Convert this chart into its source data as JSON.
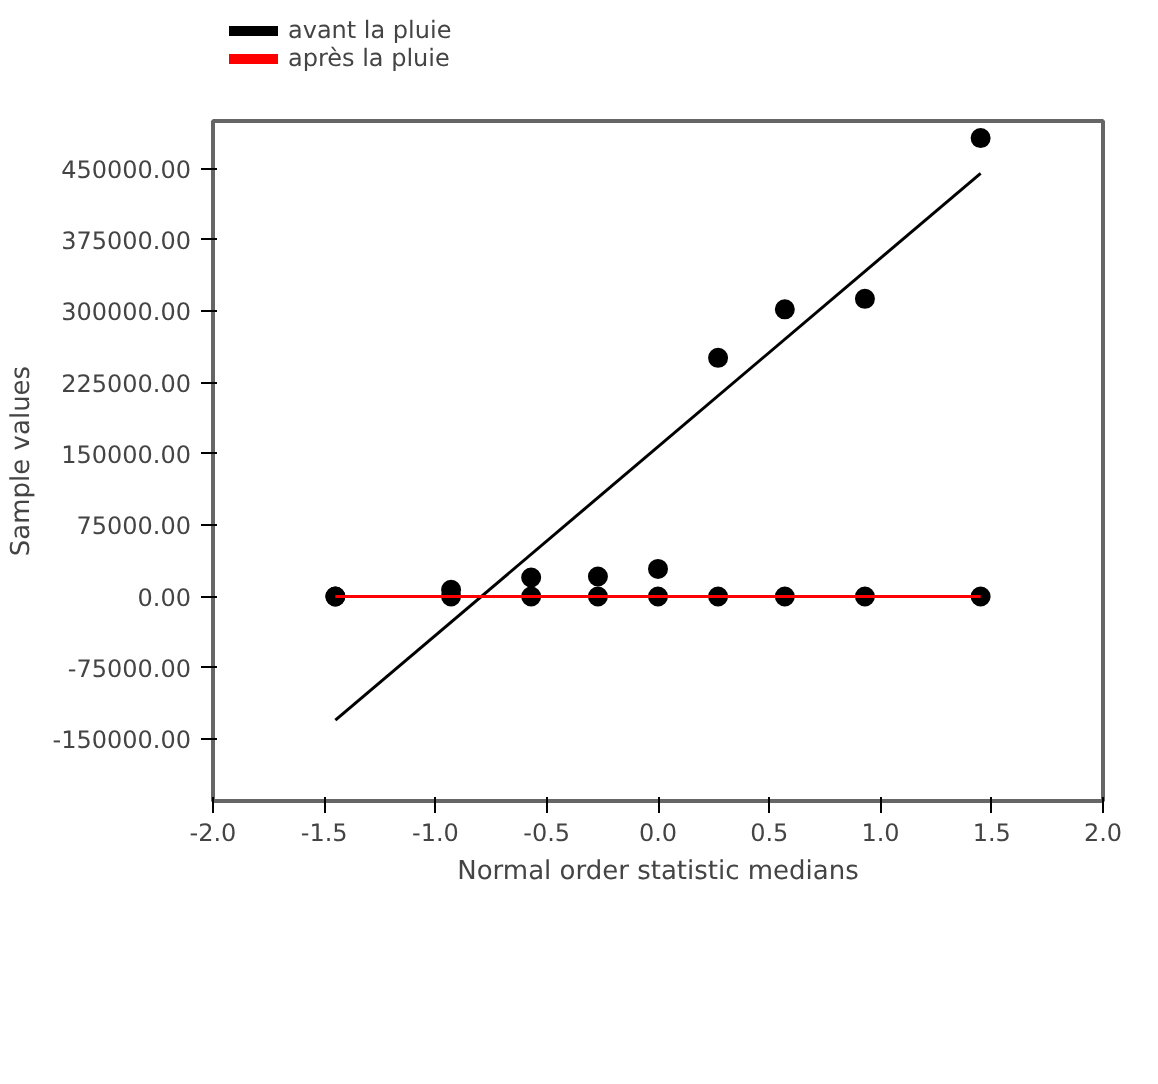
{
  "chart_data": {
    "type": "scatter",
    "xlabel": "Normal order statistic medians",
    "ylabel": "Sample values",
    "xlim": [
      -2.0,
      2.0
    ],
    "ylim": [
      -215000,
      500000
    ],
    "xticks": [
      {
        "value": -2.0,
        "label": "-2.0"
      },
      {
        "value": -1.5,
        "label": "-1.5"
      },
      {
        "value": -1.0,
        "label": "-1.0"
      },
      {
        "value": -0.5,
        "label": "-0.5"
      },
      {
        "value": 0.0,
        "label": "0.0"
      },
      {
        "value": 0.5,
        "label": "0.5"
      },
      {
        "value": 1.0,
        "label": "1.0"
      },
      {
        "value": 1.5,
        "label": "1.5"
      },
      {
        "value": 2.0,
        "label": "2.0"
      }
    ],
    "yticks": [
      {
        "value": -150000,
        "label": "-150000.00"
      },
      {
        "value": -75000,
        "label": "-75000.00"
      },
      {
        "value": 0,
        "label": "0.00"
      },
      {
        "value": 75000,
        "label": "75000.00"
      },
      {
        "value": 150000,
        "label": "150000.00"
      },
      {
        "value": 225000,
        "label": "225000.00"
      },
      {
        "value": 300000,
        "label": "300000.00"
      },
      {
        "value": 375000,
        "label": "375000.00"
      },
      {
        "value": 450000,
        "label": "450000.00"
      }
    ],
    "grid": false,
    "legend": "top left",
    "series": [
      {
        "color": "#000000",
        "marker": "circle",
        "x": [
          -1.45,
          -0.93,
          -0.57,
          -0.27,
          0.0,
          0.27,
          0.57,
          0.93,
          1.45
        ],
        "values": [
          0,
          7000,
          20000,
          21000,
          29000,
          251000,
          302000,
          313000,
          482000
        ]
      },
      {
        "color": "#000000",
        "marker": "circle",
        "x": [
          -1.45,
          -0.93,
          -0.57,
          -0.27,
          0.0,
          0.27,
          0.57,
          0.93,
          1.45
        ],
        "values": [
          0,
          0,
          0,
          0,
          0,
          0,
          0,
          0,
          0
        ]
      },
      {
        "type": "line",
        "name": "avant la pluie",
        "color": "#000000",
        "marker": "none",
        "x": [
          -1.45,
          1.45
        ],
        "values": [
          -130000,
          445000
        ]
      },
      {
        "type": "line",
        "name": "après la pluie",
        "color": "#ff0000",
        "marker": "none",
        "x": [
          -1.45,
          1.45
        ],
        "values": [
          0,
          0
        ]
      }
    ]
  }
}
